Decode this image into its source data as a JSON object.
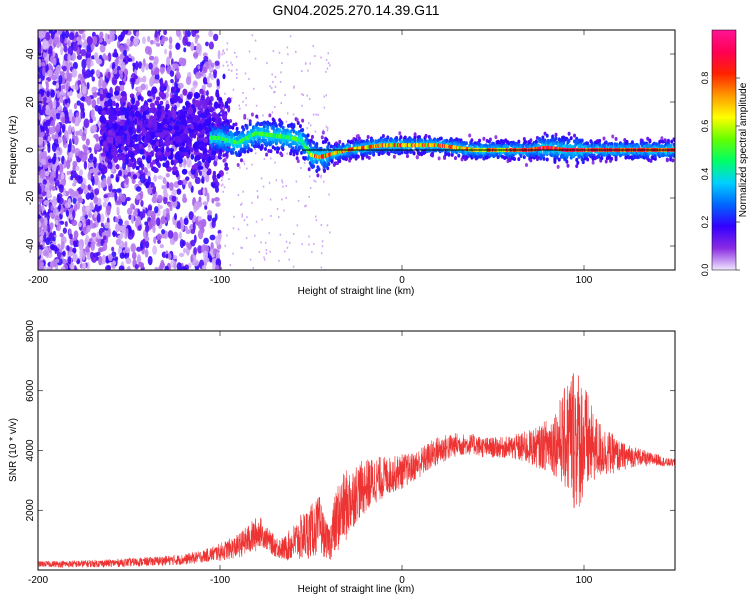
{
  "chart_data": [
    {
      "type": "heatmap",
      "title": "GN04.2025.270.14.39.G11",
      "xlabel": "Height of straight line (km)",
      "ylabel": "Frequency (Hz)",
      "xlim": [
        -200,
        150
      ],
      "ylim": [
        -50,
        50
      ],
      "xticks": [
        -200,
        -100,
        0,
        100
      ],
      "yticks": [
        -40,
        -20,
        0,
        20,
        40
      ],
      "colorbar": {
        "label": "Normalized spectral amplitude",
        "range": [
          0,
          1
        ],
        "ticks": [
          0,
          0.2,
          0.4,
          0.6,
          0.8
        ],
        "tick_labels": [
          "0.0",
          "0.2",
          "0.4",
          "0.6",
          "0.8"
        ],
        "colors": [
          "#f0e6ff",
          "#8a2be2",
          "#3300ff",
          "#0066ff",
          "#00d0ff",
          "#00ff66",
          "#66ff00",
          "#ffff00",
          "#ff9900",
          "#ff2200",
          "#ff0055",
          "#ff1493"
        ]
      },
      "ridge": [
        {
          "x": -100,
          "y": 5
        },
        {
          "x": -90,
          "y": 3
        },
        {
          "x": -80,
          "y": 7
        },
        {
          "x": -70,
          "y": 6
        },
        {
          "x": -60,
          "y": 5
        },
        {
          "x": -55,
          "y": 4
        },
        {
          "x": -50,
          "y": -2
        },
        {
          "x": -45,
          "y": -3
        },
        {
          "x": -40,
          "y": -2
        },
        {
          "x": -30,
          "y": 0
        },
        {
          "x": -20,
          "y": 1
        },
        {
          "x": -10,
          "y": 2
        },
        {
          "x": 0,
          "y": 2
        },
        {
          "x": 10,
          "y": 2
        },
        {
          "x": 20,
          "y": 2
        },
        {
          "x": 30,
          "y": 1
        },
        {
          "x": 40,
          "y": 0
        },
        {
          "x": 60,
          "y": 0
        },
        {
          "x": 70,
          "y": 0
        },
        {
          "x": 80,
          "y": 1
        },
        {
          "x": 90,
          "y": 0
        },
        {
          "x": 100,
          "y": 0
        },
        {
          "x": 110,
          "y": 0
        },
        {
          "x": 120,
          "y": 0
        },
        {
          "x": 130,
          "y": 0
        },
        {
          "x": 150,
          "y": 0
        }
      ],
      "reference_line_y": 0
    },
    {
      "type": "line",
      "xlabel": "Height of straight line (km)",
      "ylabel": "SNR (10 * v/v)",
      "xlim": [
        -200,
        150
      ],
      "ylim": [
        0,
        8000
      ],
      "xticks": [
        -200,
        -100,
        0,
        100
      ],
      "yticks": [
        2000,
        4000,
        6000,
        8000
      ],
      "color": "#ee3333",
      "series": [
        {
          "name": "SNR",
          "x": [
            -200,
            -180,
            -160,
            -140,
            -120,
            -110,
            -100,
            -90,
            -85,
            -80,
            -78,
            -75,
            -70,
            -65,
            -60,
            -55,
            -50,
            -45,
            -42,
            -40,
            -38,
            -35,
            -30,
            -25,
            -20,
            -15,
            -10,
            -5,
            0,
            5,
            10,
            15,
            20,
            25,
            30,
            35,
            40,
            45,
            50,
            55,
            60,
            65,
            70,
            75,
            80,
            85,
            90,
            92,
            95,
            97,
            100,
            103,
            105,
            110,
            115,
            120,
            125,
            130,
            135,
            140,
            145,
            150
          ],
          "mean": [
            200,
            200,
            230,
            280,
            350,
            450,
            600,
            800,
            1000,
            1200,
            1300,
            1100,
            800,
            700,
            900,
            1100,
            1300,
            1500,
            1000,
            900,
            1300,
            1800,
            2200,
            2600,
            2800,
            3000,
            3100,
            3200,
            3300,
            3400,
            3600,
            3800,
            4000,
            4100,
            4200,
            4200,
            4200,
            4100,
            4100,
            4100,
            4100,
            4100,
            4100,
            4100,
            4200,
            4300,
            4400,
            4500,
            4500,
            4400,
            4300,
            4200,
            4100,
            4000,
            3900,
            3800,
            3800,
            3800,
            3700,
            3700,
            3600,
            3600
          ],
          "spread": [
            100,
            120,
            130,
            150,
            180,
            200,
            300,
            400,
            500,
            600,
            500,
            400,
            350,
            400,
            600,
            800,
            900,
            1000,
            600,
            600,
            900,
            1200,
            1200,
            1000,
            900,
            800,
            700,
            600,
            600,
            500,
            500,
            500,
            500,
            450,
            400,
            350,
            350,
            350,
            350,
            350,
            400,
            500,
            600,
            700,
            900,
            1200,
            1800,
            2200,
            2600,
            2400,
            2000,
            1600,
            1200,
            900,
            700,
            500,
            400,
            300,
            250,
            200,
            150,
            120
          ]
        }
      ]
    }
  ]
}
